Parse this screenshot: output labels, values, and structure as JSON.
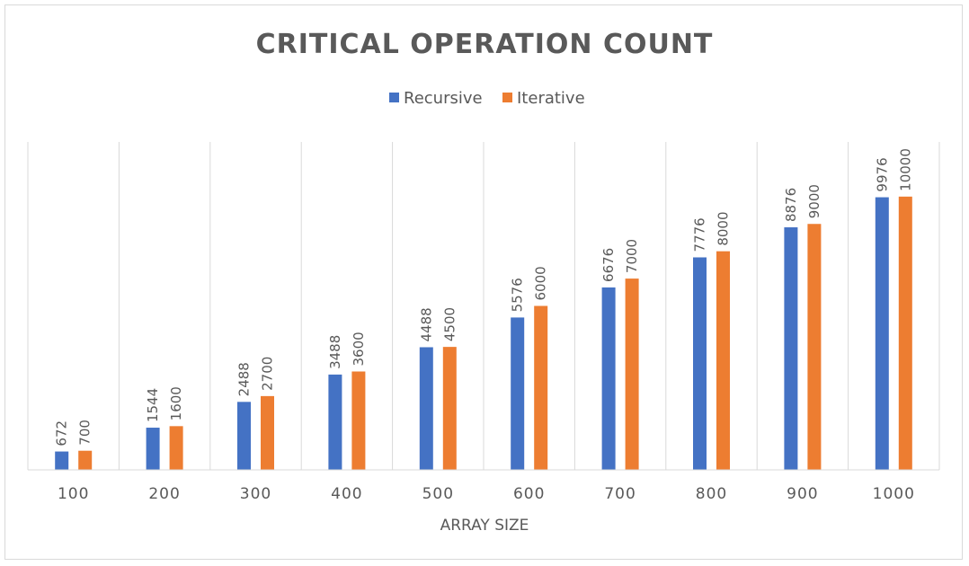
{
  "chart_data": {
    "type": "bar",
    "title": "CRITICAL OPERATION COUNT",
    "xlabel": "ARRAY SIZE",
    "ylabel": "",
    "categories": [
      "100",
      "200",
      "300",
      "400",
      "500",
      "600",
      "700",
      "800",
      "900",
      "1000"
    ],
    "series": [
      {
        "name": "Recursive",
        "color": "#4472c4",
        "values": [
          672,
          1544,
          2488,
          3488,
          4488,
          5576,
          6676,
          7776,
          8876,
          9976
        ]
      },
      {
        "name": "Iterative",
        "color": "#ed7d31",
        "values": [
          700,
          1600,
          2700,
          3600,
          4500,
          6000,
          7000,
          8000,
          9000,
          10000
        ]
      }
    ],
    "ylim": [
      0,
      12000
    ],
    "grid": "vertical-category-separators",
    "legend_position": "top-center",
    "data_labels": "rotated-vertical-above-bars"
  }
}
